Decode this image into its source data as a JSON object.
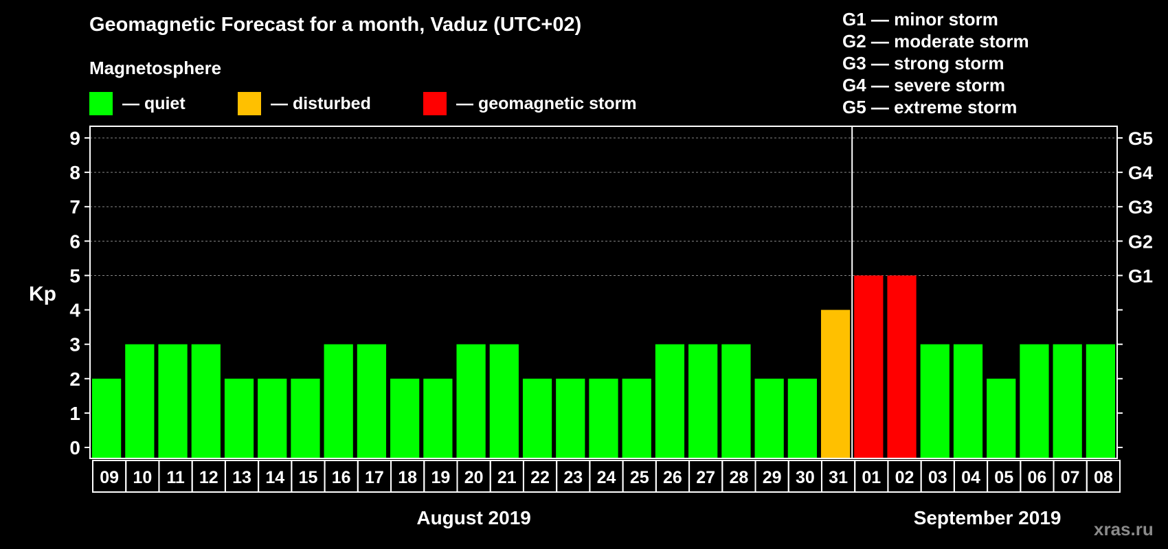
{
  "header": {
    "title": "Geomagnetic Forecast for a month, Vaduz (UTC+02)",
    "magnetosphere_label": "Magnetosphere"
  },
  "legend": [
    {
      "label": "— quiet",
      "color": "#00ff00"
    },
    {
      "label": "— disturbed",
      "color": "#ffc000"
    },
    {
      "label": "— geomagnetic storm",
      "color": "#ff0000"
    }
  ],
  "g_scale": [
    "G1 — minor storm",
    "G2 — moderate storm",
    "G3 — strong storm",
    "G4 — severe storm",
    "G5 — extreme storm"
  ],
  "watermark": "xras.ru",
  "colors": {
    "background": "#000000",
    "axis": "#ffffff",
    "grid": "#888888",
    "quiet": "#00ff00",
    "disturbed": "#ffc000",
    "storm": "#ff0000"
  },
  "chart_data": {
    "type": "bar",
    "ylabel": "Kp",
    "ylim": [
      0,
      9
    ],
    "yticks": [
      "0",
      "1",
      "2",
      "3",
      "4",
      "5",
      "6",
      "7",
      "8",
      "9"
    ],
    "right_axis_labels": [
      {
        "kp": 5,
        "label": "G1"
      },
      {
        "kp": 6,
        "label": "G2"
      },
      {
        "kp": 7,
        "label": "G3"
      },
      {
        "kp": 8,
        "label": "G4"
      },
      {
        "kp": 9,
        "label": "G5"
      }
    ],
    "categories": [
      "09",
      "10",
      "11",
      "12",
      "13",
      "14",
      "15",
      "16",
      "17",
      "18",
      "19",
      "20",
      "21",
      "22",
      "23",
      "24",
      "25",
      "26",
      "27",
      "28",
      "29",
      "30",
      "31",
      "01",
      "02",
      "03",
      "04",
      "05",
      "06",
      "07",
      "08"
    ],
    "values": [
      2,
      3,
      3,
      3,
      2,
      2,
      2,
      3,
      3,
      2,
      2,
      3,
      3,
      2,
      2,
      2,
      2,
      3,
      3,
      3,
      2,
      2,
      4,
      5,
      5,
      3,
      3,
      2,
      3,
      3,
      3
    ],
    "levels": [
      "quiet",
      "quiet",
      "quiet",
      "quiet",
      "quiet",
      "quiet",
      "quiet",
      "quiet",
      "quiet",
      "quiet",
      "quiet",
      "quiet",
      "quiet",
      "quiet",
      "quiet",
      "quiet",
      "quiet",
      "quiet",
      "quiet",
      "quiet",
      "quiet",
      "quiet",
      "disturbed",
      "storm",
      "storm",
      "quiet",
      "quiet",
      "quiet",
      "quiet",
      "quiet",
      "quiet"
    ],
    "months": [
      {
        "label": "August 2019",
        "first_index": 0,
        "last_index": 22
      },
      {
        "label": "September 2019",
        "first_index": 23,
        "last_index": 30
      }
    ],
    "grid": true
  }
}
